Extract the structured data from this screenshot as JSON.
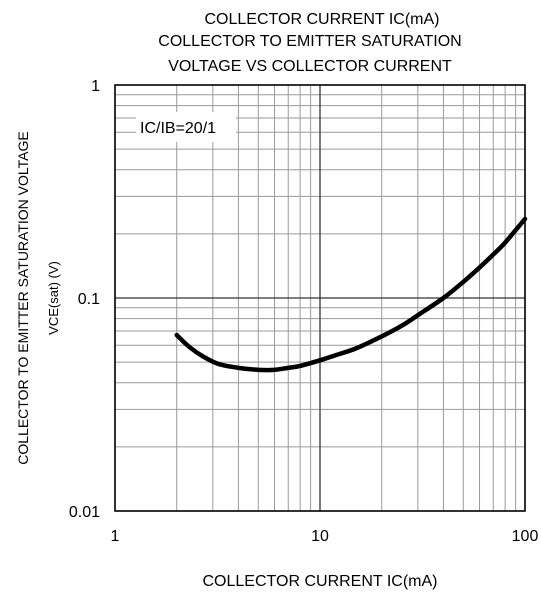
{
  "chart_data": {
    "type": "line",
    "title_lines": [
      "COLLECTOR CURRENT  IC(mA)",
      "COLLECTOR TO EMITTER SATURATION",
      "VOLTAGE VS COLLECTOR CURRENT"
    ],
    "xlabel": "COLLECTOR CURRENT  IC(mA)",
    "ylabel_lines": [
      "COLLECTOR TO EMITTER SATURATION VOLTAGE",
      "VCE(sat) (V)"
    ],
    "x_scale": "log",
    "y_scale": "log",
    "xlim": [
      1,
      100
    ],
    "ylim": [
      0.01,
      1
    ],
    "x_ticks": [
      1,
      10,
      100
    ],
    "x_tick_labels": [
      "1",
      "10",
      "100"
    ],
    "y_ticks": [
      0.01,
      0.1,
      1
    ],
    "y_tick_labels": [
      "0.01",
      "0.1",
      "1"
    ],
    "grid": true,
    "annotation": "IC/IB=20/1",
    "series": [
      {
        "color": "#000000",
        "x": [
          2,
          2.3,
          2.7,
          3.2,
          4,
          5,
          6,
          7,
          8,
          10,
          12,
          15,
          20,
          25,
          30,
          40,
          50,
          60,
          70,
          80,
          100
        ],
        "y": [
          0.067,
          0.059,
          0.053,
          0.049,
          0.047,
          0.046,
          0.046,
          0.047,
          0.048,
          0.051,
          0.054,
          0.058,
          0.066,
          0.074,
          0.083,
          0.1,
          0.119,
          0.139,
          0.16,
          0.182,
          0.235
        ]
      }
    ]
  }
}
